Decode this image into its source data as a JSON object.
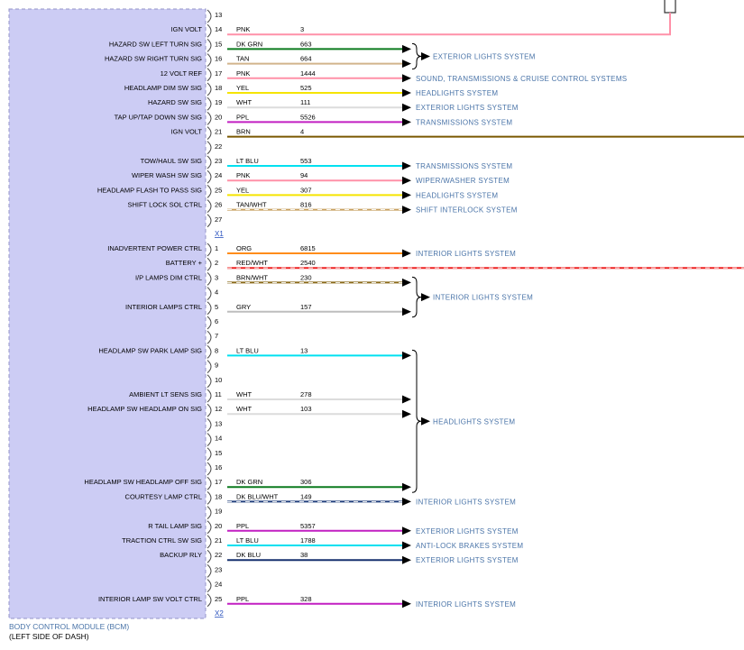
{
  "module": {
    "name": "BODY CONTROL MODULE (BCM)",
    "location": "(LEFT SIDE OF DASH)"
  },
  "palette": {
    "module_fill": "#ccccf4",
    "module_border": "#9494c8",
    "system_link": "#4a74a8",
    "connector_link": "#2a52be",
    "wire_text": "#000000",
    "arrow": "#000000"
  },
  "wire_colors": {
    "PNK": {
      "hex": "#ff91a8"
    },
    "DK GRN": {
      "hex": "#0b7a1e"
    },
    "TAN": {
      "hex": "#d2b48c"
    },
    "YEL": {
      "hex": "#f5e400"
    },
    "WHT": {
      "hex": "#dcdcdc"
    },
    "PPL": {
      "hex": "#c21fc2"
    },
    "BRN": {
      "hex": "#7a5800"
    },
    "LT BLU": {
      "hex": "#00e0f0"
    },
    "TAN/WHT": {
      "hex": "#c8a060",
      "stripe": "#ffffff"
    },
    "ORG": {
      "hex": "#ff8c1a"
    },
    "RED/WHT": {
      "hex": "#ee2222",
      "stripe": "#ffffff"
    },
    "BRN/WHT": {
      "hex": "#8a6a1a",
      "stripe": "#ffffff"
    },
    "GRY": {
      "hex": "#bdbdbd"
    },
    "DK BLU/WHT": {
      "hex": "#23407d",
      "stripe": "#ffffff"
    },
    "DK BLU": {
      "hex": "#16306e"
    }
  },
  "connectors": [
    {
      "id": "X1",
      "pins": [
        {
          "num": 13
        },
        {
          "num": 14,
          "label": "IGN VOLT",
          "color": "PNK",
          "circuit": "3",
          "route": "up"
        },
        {
          "num": 15,
          "label": "HAZARD SW LEFT TURN SIG",
          "color": "DK GRN",
          "circuit": "663",
          "route": "arrow"
        },
        {
          "num": 16,
          "label": "HAZARD SW RIGHT TURN SIG",
          "color": "TAN",
          "circuit": "664",
          "route": "arrow"
        },
        {
          "num": 17,
          "label": "12 VOLT REF",
          "color": "PNK",
          "circuit": "1444",
          "route": "arrow",
          "system": "SOUND, TRANSMISSIONS & CRUISE CONTROL SYSTEMS"
        },
        {
          "num": 18,
          "label": "HEADLAMP DIM SW SIG",
          "color": "YEL",
          "circuit": "525",
          "route": "arrow",
          "system": "HEADLIGHTS SYSTEM"
        },
        {
          "num": 19,
          "label": "HAZARD SW SIG",
          "color": "WHT",
          "circuit": "111",
          "route": "arrow",
          "system": "EXTERIOR LIGHTS SYSTEM"
        },
        {
          "num": 20,
          "label": "TAP UP/TAP DOWN SW SIG",
          "color": "PPL",
          "circuit": "5526",
          "route": "arrow",
          "system": "TRANSMISSIONS SYSTEM"
        },
        {
          "num": 21,
          "label": "IGN VOLT",
          "color": "BRN",
          "circuit": "4",
          "route": "edge"
        },
        {
          "num": 22
        },
        {
          "num": 23,
          "label": "TOW/HAUL SW SIG",
          "color": "LT BLU",
          "circuit": "553",
          "route": "arrow",
          "system": "TRANSMISSIONS SYSTEM"
        },
        {
          "num": 24,
          "label": "WIPER WASH SW SIG",
          "color": "PNK",
          "circuit": "94",
          "route": "arrow",
          "system": "WIPER/WASHER SYSTEM"
        },
        {
          "num": 25,
          "label": "HEADLAMP FLASH TO PASS SIG",
          "color": "YEL",
          "circuit": "307",
          "route": "arrow",
          "system": "HEADLIGHTS SYSTEM"
        },
        {
          "num": 26,
          "label": "SHIFT LOCK SOL CTRL",
          "color": "TAN/WHT",
          "circuit": "816",
          "route": "arrow",
          "system": "SHIFT INTERLOCK SYSTEM"
        },
        {
          "num": 27
        }
      ]
    },
    {
      "id": "X2",
      "pins": [
        {
          "num": 1,
          "label": "INADVERTENT POWER CTRL",
          "color": "ORG",
          "circuit": "6815",
          "route": "arrow",
          "system": "INTERIOR LIGHTS SYSTEM"
        },
        {
          "num": 2,
          "label": "BATTERY +",
          "color": "RED/WHT",
          "circuit": "2540",
          "route": "edge"
        },
        {
          "num": 3,
          "label": "I/P LAMPS DIM CTRL",
          "color": "BRN/WHT",
          "circuit": "230",
          "route": "arrow"
        },
        {
          "num": 4
        },
        {
          "num": 5,
          "label": "INTERIOR LAMPS CTRL",
          "color": "GRY",
          "circuit": "157",
          "route": "arrow"
        },
        {
          "num": 6
        },
        {
          "num": 7
        },
        {
          "num": 8,
          "label": "HEADLAMP SW PARK LAMP SIG",
          "color": "LT BLU",
          "circuit": "13",
          "route": "arrow"
        },
        {
          "num": 9
        },
        {
          "num": 10
        },
        {
          "num": 11,
          "label": "AMBIENT LT SENS SIG",
          "color": "WHT",
          "circuit": "278",
          "route": "arrow"
        },
        {
          "num": 12,
          "label": "HEADLAMP SW HEADLAMP ON SIG",
          "color": "WHT",
          "circuit": "103",
          "route": "arrow"
        },
        {
          "num": 13
        },
        {
          "num": 14
        },
        {
          "num": 15
        },
        {
          "num": 16
        },
        {
          "num": 17,
          "label": "HEADLAMP SW HEADLAMP OFF SIG",
          "color": "DK GRN",
          "circuit": "306",
          "route": "arrow"
        },
        {
          "num": 18,
          "label": "COURTESY LAMP CTRL",
          "color": "DK BLU/WHT",
          "circuit": "149",
          "route": "arrow",
          "system": "INTERIOR LIGHTS SYSTEM"
        },
        {
          "num": 19
        },
        {
          "num": 20,
          "label": "R TAIL LAMP SIG",
          "color": "PPL",
          "circuit": "5357",
          "route": "arrow",
          "system": "EXTERIOR LIGHTS SYSTEM"
        },
        {
          "num": 21,
          "label": "TRACTION CTRL SW SIG",
          "color": "LT BLU",
          "circuit": "1788",
          "route": "arrow",
          "system": "ANTI-LOCK BRAKES SYSTEM"
        },
        {
          "num": 22,
          "label": "BACKUP RLY",
          "color": "DK BLU",
          "circuit": "38",
          "route": "arrow",
          "system": "EXTERIOR LIGHTS SYSTEM"
        },
        {
          "num": 23
        },
        {
          "num": 24
        },
        {
          "num": 25,
          "label": "INTERIOR LAMP SW VOLT CTRL",
          "color": "PPL",
          "circuit": "328",
          "route": "arrow",
          "system": "INTERIOR LIGHTS SYSTEM"
        }
      ]
    }
  ],
  "groups": [
    {
      "connector": "X1",
      "pins": [
        15,
        16
      ],
      "system": "EXTERIOR LIGHTS SYSTEM"
    },
    {
      "connector": "X2",
      "pins": [
        3,
        5
      ],
      "system": "INTERIOR LIGHTS SYSTEM"
    },
    {
      "connector": "X2",
      "pins": [
        8,
        11,
        12,
        17
      ],
      "system": "HEADLIGHTS SYSTEM"
    }
  ]
}
